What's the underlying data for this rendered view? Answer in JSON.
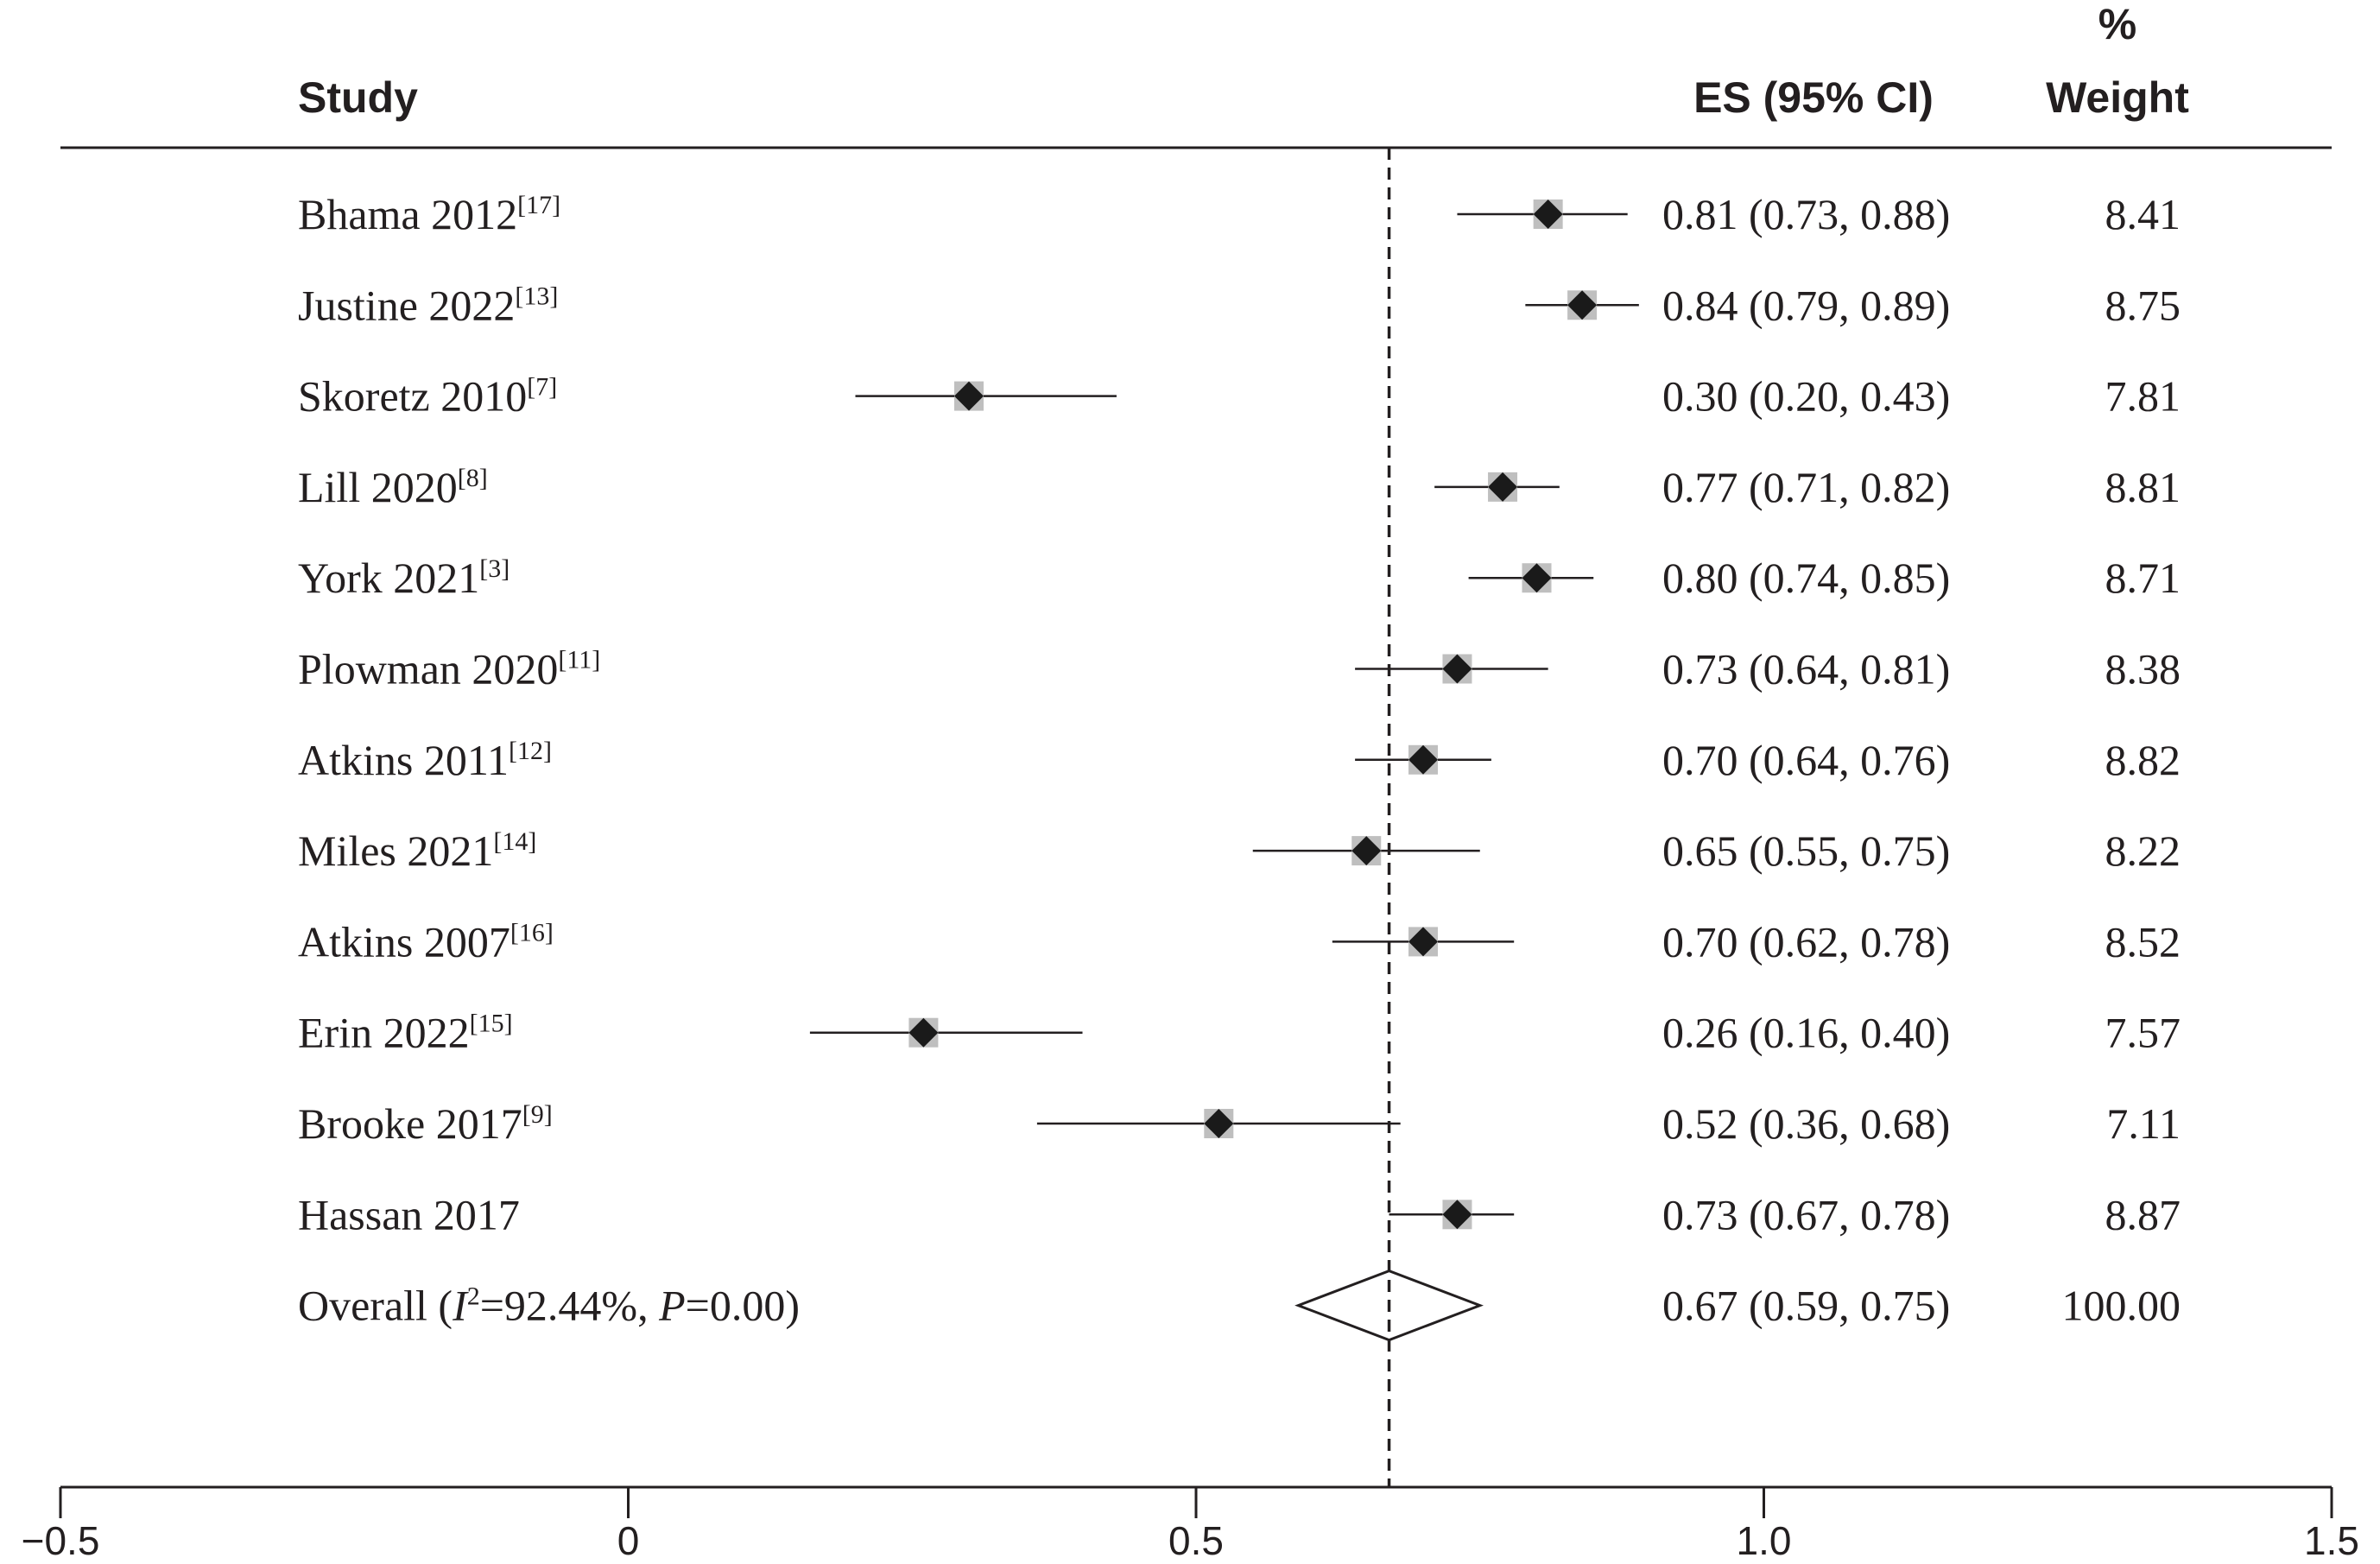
{
  "headers": {
    "study": "Study",
    "es": "ES (95% CI)",
    "weight_line1": "%",
    "weight_line2": "Weight"
  },
  "chart_data": {
    "type": "forest",
    "title": "",
    "xlabel": "",
    "ylabel": "",
    "xlim": [
      -0.5,
      1.5
    ],
    "x_ticks": [
      -0.5,
      0,
      0.5,
      1.0,
      1.5
    ],
    "x_tick_labels": [
      "−0.5",
      "0",
      "0.5",
      "1.0",
      "1.5"
    ],
    "reference_line": 0.67,
    "studies": [
      {
        "name": "Bhama 2012",
        "ref": "[17]",
        "es": 0.81,
        "lo": 0.73,
        "hi": 0.88,
        "es_text": "0.81 (0.73, 0.88)",
        "weight": "8.41"
      },
      {
        "name": "Justine 2022",
        "ref": "[13]",
        "es": 0.84,
        "lo": 0.79,
        "hi": 0.89,
        "es_text": "0.84 (0.79, 0.89)",
        "weight": "8.75"
      },
      {
        "name": "Skoretz 2010",
        "ref": "[7]",
        "es": 0.3,
        "lo": 0.2,
        "hi": 0.43,
        "es_text": "0.30 (0.20, 0.43)",
        "weight": "7.81"
      },
      {
        "name": "Lill 2020",
        "ref": "[8]",
        "es": 0.77,
        "lo": 0.71,
        "hi": 0.82,
        "es_text": "0.77 (0.71, 0.82)",
        "weight": "8.81"
      },
      {
        "name": "York 2021",
        "ref": "[3]",
        "es": 0.8,
        "lo": 0.74,
        "hi": 0.85,
        "es_text": "0.80 (0.74, 0.85)",
        "weight": "8.71"
      },
      {
        "name": "Plowman 2020",
        "ref": "[11]",
        "es": 0.73,
        "lo": 0.64,
        "hi": 0.81,
        "es_text": "0.73 (0.64, 0.81)",
        "weight": "8.38"
      },
      {
        "name": "Atkins 2011",
        "ref": "[12]",
        "es": 0.7,
        "lo": 0.64,
        "hi": 0.76,
        "es_text": "0.70 (0.64, 0.76)",
        "weight": "8.82"
      },
      {
        "name": "Miles 2021",
        "ref": "[14]",
        "es": 0.65,
        "lo": 0.55,
        "hi": 0.75,
        "es_text": "0.65 (0.55, 0.75)",
        "weight": "8.22"
      },
      {
        "name": "Atkins 2007",
        "ref": "[16]",
        "es": 0.7,
        "lo": 0.62,
        "hi": 0.78,
        "es_text": "0.70 (0.62, 0.78)",
        "weight": "8.52"
      },
      {
        "name": "Erin 2022",
        "ref": "[15]",
        "es": 0.26,
        "lo": 0.16,
        "hi": 0.4,
        "es_text": "0.26 (0.16, 0.40)",
        "weight": "7.57"
      },
      {
        "name": "Brooke 2017",
        "ref": "[9]",
        "es": 0.52,
        "lo": 0.36,
        "hi": 0.68,
        "es_text": "0.52 (0.36, 0.68)",
        "weight": "7.11"
      },
      {
        "name": "Hassan 2017",
        "ref": "",
        "es": 0.73,
        "lo": 0.67,
        "hi": 0.78,
        "es_text": "0.73 (0.67, 0.78)",
        "weight": "8.87"
      }
    ],
    "overall": {
      "label_prefix": "Overall (",
      "i2_italic": "I",
      "i2_sup": "2",
      "i2_text": "=92.44%, ",
      "p_italic": "P",
      "p_text": "=0.00)",
      "es": 0.67,
      "lo": 0.59,
      "hi": 0.75,
      "es_text": "0.67 (0.59, 0.75)",
      "weight": "100.00"
    },
    "colors": {
      "ink": "#231f20",
      "weight_box": "#bfbfbf",
      "marker": "#1a1a1a"
    }
  }
}
